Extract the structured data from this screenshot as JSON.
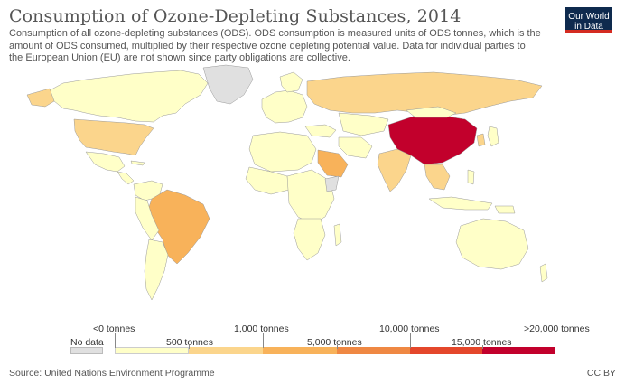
{
  "title": "Consumption of Ozone-Depleting Substances, 2014",
  "subtitle": "Consumption of all ozone-depleting substances (ODS). ODS consumption is measured units of ODS tonnes, which is the amount of ODS consumed, multiplied by their respective ozone depleting potential value. Data for individual parties to the European Union (EU) are not shown since party obligations are collective.",
  "logo": {
    "line1": "Our World",
    "line2": "in Data",
    "bg_color": "#0e2a4e",
    "accent_color": "#d42b21"
  },
  "legend": {
    "no_data_label": "No data",
    "top_labels": [
      "<0 tonnes",
      "1,000 tonnes",
      "10,000 tonnes",
      ">20,000 tonnes"
    ],
    "bottom_labels": [
      "500 tonnes",
      "5,000 tonnes",
      "15,000 tonnes"
    ],
    "bins": [
      {
        "from": "<0 tonnes",
        "to": "500 tonnes",
        "color": "#ffffc8"
      },
      {
        "from": "500 tonnes",
        "to": "1,000 tonnes",
        "color": "#fbd58c"
      },
      {
        "from": "1,000 tonnes",
        "to": "5,000 tonnes",
        "color": "#f8b25a"
      },
      {
        "from": "5,000 tonnes",
        "to": "10,000 tonnes",
        "color": "#ef8843"
      },
      {
        "from": "10,000 tonnes",
        "to": "15,000 tonnes",
        "color": "#e4472b"
      },
      {
        "from": "15,000 tonnes",
        "to": ">20,000 tonnes",
        "color": "#c2002c"
      }
    ],
    "no_data_color": "#e0e0e0"
  },
  "source": "Source: United Nations Environment Programme",
  "license": "CC BY"
}
